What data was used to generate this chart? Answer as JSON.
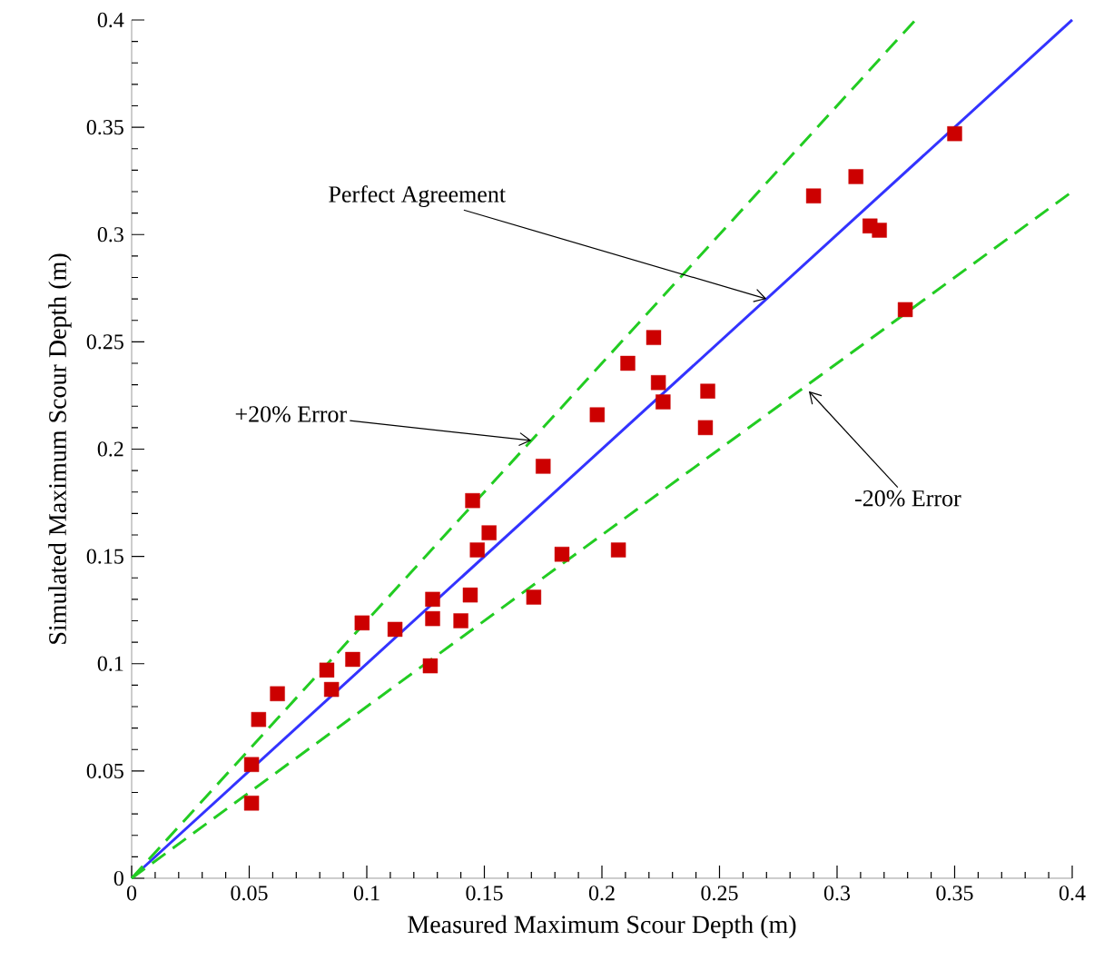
{
  "chart_data": {
    "type": "scatter",
    "xlabel": "Measured Maximum Scour Depth (m)",
    "ylabel": "Simulated Maximum Scour Depth (m)",
    "xlim": [
      0,
      0.4
    ],
    "ylim": [
      0,
      0.4
    ],
    "xticks": [
      0,
      0.05,
      0.1,
      0.15,
      0.2,
      0.25,
      0.3,
      0.35,
      0.4
    ],
    "yticks": [
      0,
      0.05,
      0.1,
      0.15,
      0.2,
      0.25,
      0.3,
      0.35,
      0.4
    ],
    "grid": false,
    "series": [
      {
        "marker": "square",
        "color": "#cc0000",
        "x": [
          0.051,
          0.051,
          0.054,
          0.062,
          0.083,
          0.085,
          0.094,
          0.098,
          0.112,
          0.127,
          0.128,
          0.128,
          0.14,
          0.144,
          0.145,
          0.147,
          0.152,
          0.171,
          0.175,
          0.183,
          0.198,
          0.207,
          0.211,
          0.222,
          0.224,
          0.226,
          0.245,
          0.244,
          0.29,
          0.308,
          0.314,
          0.318,
          0.329,
          0.35
        ],
        "values": [
          0.053,
          0.035,
          0.074,
          0.086,
          0.097,
          0.088,
          0.102,
          0.119,
          0.116,
          0.099,
          0.13,
          0.121,
          0.12,
          0.132,
          0.176,
          0.153,
          0.161,
          0.131,
          0.192,
          0.151,
          0.216,
          0.153,
          0.24,
          0.252,
          0.231,
          0.222,
          0.227,
          0.21,
          0.318,
          0.327,
          0.304,
          0.302,
          0.265,
          0.347
        ]
      },
      {
        "type": "line",
        "marker": "none",
        "line_style": "solid",
        "color": "#3333ff",
        "x": [
          0,
          0.4
        ],
        "values": [
          0,
          0.4
        ]
      },
      {
        "type": "line",
        "marker": "none",
        "line_style": "dashed",
        "color": "#22cc22",
        "x": [
          0,
          0.3333
        ],
        "values": [
          0,
          0.4
        ]
      },
      {
        "type": "line",
        "marker": "none",
        "line_style": "dashed",
        "color": "#22cc22",
        "x": [
          0,
          0.4
        ],
        "values": [
          0,
          0.32
        ]
      }
    ],
    "annotations": [
      {
        "text": "Perfect Agreement",
        "x": 0.27,
        "y": 0.27
      },
      {
        "text": "+20% Error",
        "x": 0.17,
        "y": 0.204
      },
      {
        "text": "-20% Error",
        "x": 0.288,
        "y": 0.227
      }
    ]
  }
}
